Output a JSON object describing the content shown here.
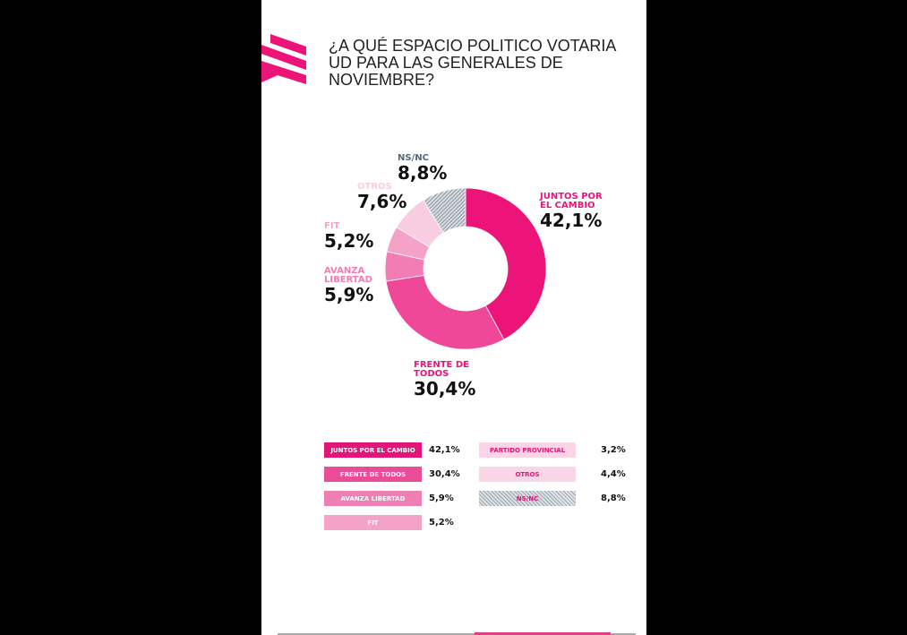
{
  "title": "¿A QUÉ ESPACIO POLITICO VOTARIA UD PARA LAS GENERALES DE NOVIEMBRE?",
  "chart_data": {
    "type": "pie",
    "donut": true,
    "slices": [
      {
        "name": "JUNTOS POR EL CAMBIO",
        "value": 42.1,
        "label": "42,1%",
        "color": "#ec1478"
      },
      {
        "name": "FRENTE DE TODOS",
        "value": 30.4,
        "label": "30,4%",
        "color": "#f04899"
      },
      {
        "name": "AVANZA LIBERTAD",
        "value": 5.9,
        "label": "5,9%",
        "color": "#f27db5"
      },
      {
        "name": "FIT",
        "value": 5.2,
        "label": "5,2%",
        "color": "#f5a2c9"
      },
      {
        "name": "OTROS",
        "value": 7.6,
        "label": "7,6%",
        "color": "#f9cde1"
      },
      {
        "name": "NS/NC",
        "value": 8.8,
        "label": "8,8%",
        "color": "hatch-gray"
      }
    ],
    "legend": [
      {
        "name": "JUNTOS POR EL CAMBIO",
        "label": "42,1%",
        "color": "#e3157a"
      },
      {
        "name": "FRENTE DE TODOS",
        "label": "30,4%",
        "color": "#ea4c97"
      },
      {
        "name": "AVANZA LIBERTAD",
        "label": "5,9%",
        "color": "#ee7fb3"
      },
      {
        "name": "FIT",
        "label": "5,2%",
        "color": "#f3a3c8"
      },
      {
        "name": "PARTIDO PROVINCIAL",
        "label": "3,2%",
        "color": "#fad5e5",
        "text_color": "#e3157a"
      },
      {
        "name": "OTROS",
        "label": "4,4%",
        "color": "#fad5e5",
        "text_color": "#e3157a"
      },
      {
        "name": "NS/NC",
        "label": "8,8%",
        "color": "hatch-gray",
        "text_color": "#e3157a"
      }
    ]
  }
}
